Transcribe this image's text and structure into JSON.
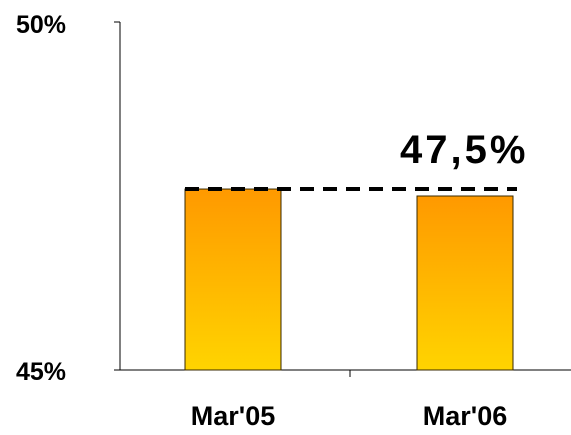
{
  "chart_data": {
    "type": "bar",
    "categories": [
      "Mar'05",
      "Mar'06"
    ],
    "values": [
      47.6,
      47.5
    ],
    "ylim": [
      45,
      50
    ],
    "yticks": [
      "45%",
      "50%"
    ],
    "reference_line": {
      "value": 47.6,
      "style": "dashed"
    },
    "annotation": "47,5%",
    "grid": false,
    "legend": "none",
    "colors": {
      "bar_top": "#ff9900",
      "bar_bottom": "#ffd400",
      "bar_stroke": "#3a2a00",
      "axis": "#000000"
    }
  }
}
